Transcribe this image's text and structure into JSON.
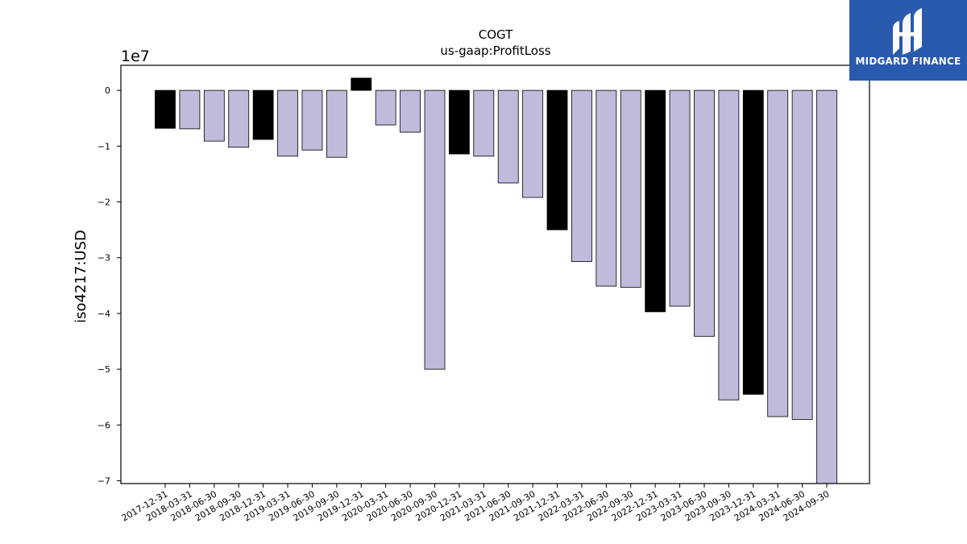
{
  "chart_data": {
    "type": "bar",
    "title": "COGT",
    "subtitle": "us-gaap:ProfitLoss",
    "ylabel": "iso4217:USD",
    "xlabel": "",
    "y_scale_label": "1e7",
    "y_multiplier": 10000000,
    "ylim": [
      -7.05,
      0.45
    ],
    "yticks": [
      0,
      -1,
      -2,
      -3,
      -4,
      -5,
      -6,
      -7
    ],
    "ytick_labels": [
      "0",
      "−1",
      "−2",
      "−3",
      "−4",
      "−5",
      "−6",
      "−7"
    ],
    "grid": false,
    "categories": [
      "2017-12-31",
      "2018-03-31",
      "2018-06-30",
      "2018-09-30",
      "2018-12-31",
      "2019-03-31",
      "2019-06-30",
      "2019-09-30",
      "2019-12-31",
      "2020-03-31",
      "2020-06-30",
      "2020-09-30",
      "2020-12-31",
      "2021-03-31",
      "2021-06-30",
      "2021-09-30",
      "2021-12-31",
      "2022-03-31",
      "2022-06-30",
      "2022-09-30",
      "2022-12-31",
      "2023-03-31",
      "2023-06-30",
      "2023-09-30",
      "2023-12-31",
      "2024-03-31",
      "2024-06-30",
      "2024-09-30"
    ],
    "values": [
      -6800000,
      -6900000,
      -9100000,
      -10200000,
      -8800000,
      -11800000,
      -10700000,
      -12000000,
      2200000,
      -6200000,
      -7500000,
      -50000000,
      -11400000,
      -11800000,
      -16600000,
      -19200000,
      -25000000,
      -30700000,
      -35100000,
      -35300000,
      -39700000,
      -38700000,
      -44100000,
      -55500000,
      -54500000,
      -58500000,
      -59000000,
      -70600000
    ],
    "colors": [
      "#000000",
      "#bebbdb",
      "#bebbdb",
      "#bebbdb",
      "#000000",
      "#bebbdb",
      "#bebbdb",
      "#bebbdb",
      "#000000",
      "#bebbdb",
      "#bebbdb",
      "#bebbdb",
      "#000000",
      "#bebbdb",
      "#bebbdb",
      "#bebbdb",
      "#000000",
      "#bebbdb",
      "#bebbdb",
      "#bebbdb",
      "#000000",
      "#bebbdb",
      "#bebbdb",
      "#bebbdb",
      "#000000",
      "#bebbdb",
      "#bebbdb",
      "#bebbdb"
    ]
  },
  "logo": {
    "text": "MIDGARD FINANCE",
    "background": "#2a5aad"
  }
}
